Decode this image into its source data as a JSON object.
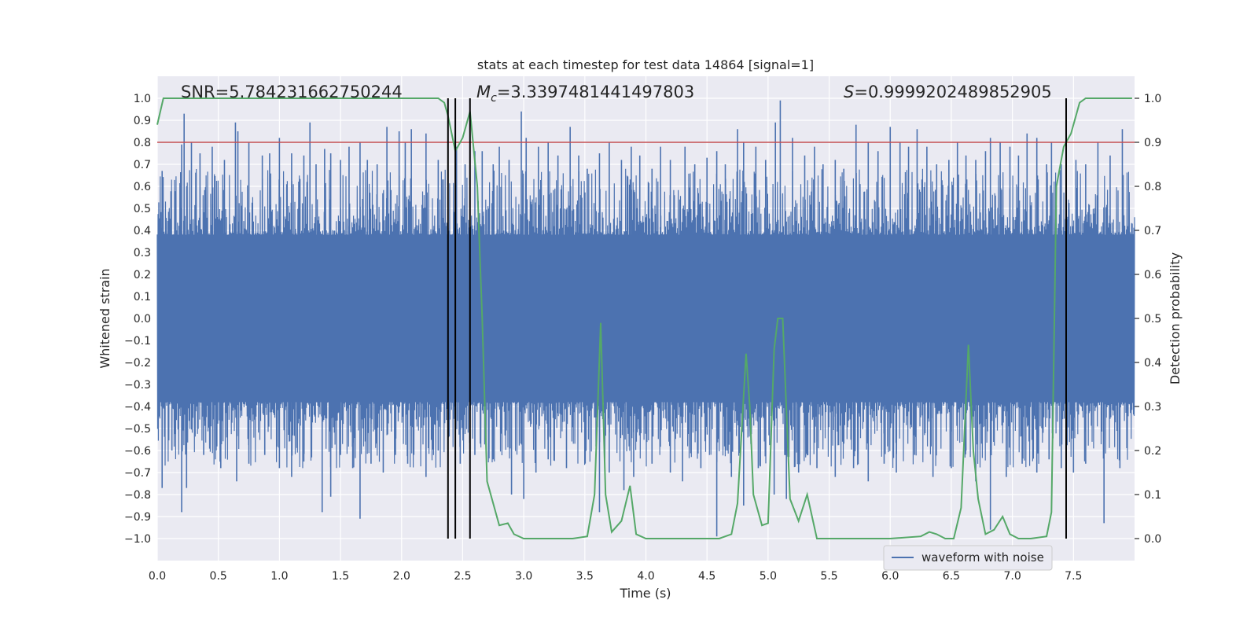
{
  "chart_data": {
    "type": "line",
    "title": "stats at each timestep for test data 14864 [signal=1]",
    "xlabel": "Time (s)",
    "ylabel": "Whitened strain",
    "y2label": "Detection probability",
    "xlim": [
      0.0,
      8.0
    ],
    "ylim": [
      -1.1,
      1.1
    ],
    "y2lim": [
      -0.05,
      1.05
    ],
    "xticks": [
      "0.0",
      "0.5",
      "1.0",
      "1.5",
      "2.0",
      "2.5",
      "3.0",
      "3.5",
      "4.0",
      "4.5",
      "5.0",
      "5.5",
      "6.0",
      "6.5",
      "7.0",
      "7.5"
    ],
    "yticks": [
      "1.0",
      "0.9",
      "0.8",
      "0.7",
      "0.6",
      "0.5",
      "0.4",
      "0.3",
      "0.2",
      "0.1",
      "0.0",
      "−0.1",
      "−0.2",
      "−0.3",
      "−0.4",
      "−0.5",
      "−0.6",
      "−0.7",
      "−0.8",
      "−0.9",
      "−1.0"
    ],
    "y2ticks": [
      "1.0",
      "0.9",
      "0.8",
      "0.7",
      "0.6",
      "0.5",
      "0.4",
      "0.3",
      "0.2",
      "0.1",
      "0.0"
    ],
    "grid": true,
    "legend_position": "bottom-right",
    "annotations": {
      "snr_text": "SNR=5.784231662750244",
      "mc_prefix": "M",
      "mc_sub": "c",
      "mc_value": "=3.3397481441497803",
      "s_prefix": "S",
      "s_value": "=0.9999202489852905"
    },
    "threshold_line": {
      "y": 0.8,
      "color": "#c44e52"
    },
    "vertical_lines_x": [
      2.38,
      2.44,
      2.56,
      7.44
    ],
    "series": [
      {
        "name": "waveform with noise",
        "color": "#4c72b0",
        "axis": "left",
        "envelope_note": "dense noise ~ ±0.4 with peaks to ±1.0",
        "peaks_x": [
          0.04,
          0.2,
          0.22,
          0.28,
          0.35,
          0.45,
          0.55,
          0.64,
          0.66,
          0.75,
          0.86,
          0.92,
          1.0,
          1.1,
          1.2,
          1.25,
          1.3,
          1.37,
          1.42,
          1.5,
          1.57,
          1.66,
          1.72,
          1.8,
          1.88,
          1.98,
          2.03,
          2.08,
          2.2,
          2.3,
          2.45,
          2.52,
          2.6,
          2.66,
          2.75,
          2.8,
          2.88,
          2.98,
          3.02,
          3.12,
          3.2,
          3.28,
          3.38,
          3.45,
          3.52,
          3.62,
          3.7,
          3.8,
          3.88,
          3.95,
          4.05,
          4.12,
          4.2,
          4.32,
          4.4,
          4.5,
          4.58,
          4.65,
          4.75,
          4.8,
          4.9,
          4.98,
          5.06,
          5.1,
          5.2,
          5.3,
          5.38,
          5.45,
          5.55,
          5.62,
          5.72,
          5.82,
          5.9,
          6.0,
          6.08,
          6.15,
          6.22,
          6.3,
          6.38,
          6.48,
          6.55,
          6.62,
          6.7,
          6.78,
          6.82,
          6.9,
          6.98,
          7.05,
          7.12,
          7.2,
          7.28,
          7.32,
          7.4,
          7.52,
          7.6,
          7.7,
          7.8,
          7.9
        ],
        "peaks_y": [
          0.67,
          0.79,
          0.93,
          0.8,
          0.75,
          0.78,
          0.72,
          0.89,
          0.85,
          0.8,
          0.74,
          0.75,
          0.82,
          0.75,
          0.74,
          0.89,
          0.7,
          0.77,
          0.75,
          0.72,
          0.78,
          0.8,
          0.72,
          0.7,
          0.87,
          0.85,
          0.8,
          0.86,
          0.84,
          0.72,
          0.78,
          0.7,
          0.76,
          0.76,
          0.7,
          0.78,
          0.72,
          0.94,
          0.82,
          0.78,
          0.8,
          0.74,
          0.87,
          0.74,
          0.68,
          0.75,
          0.8,
          0.72,
          0.78,
          0.74,
          0.68,
          0.78,
          0.72,
          0.78,
          0.7,
          0.73,
          0.76,
          0.7,
          0.86,
          0.8,
          0.78,
          0.72,
          0.89,
          0.99,
          0.82,
          0.74,
          0.78,
          0.7,
          0.72,
          0.68,
          0.88,
          0.8,
          0.76,
          0.87,
          0.8,
          0.78,
          0.86,
          0.78,
          0.7,
          0.72,
          0.8,
          0.74,
          0.72,
          0.76,
          0.82,
          0.8,
          0.78,
          0.74,
          0.84,
          0.82,
          0.7,
          0.8,
          0.7,
          0.72,
          0.7,
          0.8,
          0.74,
          0.86
        ],
        "troughs_x": [
          0.04,
          0.12,
          0.2,
          0.24,
          0.38,
          0.52,
          0.65,
          0.75,
          0.88,
          1.0,
          1.1,
          1.2,
          1.35,
          1.42,
          1.5,
          1.6,
          1.66,
          1.75,
          1.85,
          1.95,
          2.05,
          2.2,
          2.3,
          2.48,
          2.6,
          2.75,
          2.9,
          3.0,
          3.1,
          3.2,
          3.35,
          3.5,
          3.62,
          3.7,
          3.82,
          3.9,
          4.05,
          4.2,
          4.3,
          4.45,
          4.58,
          4.7,
          4.8,
          4.92,
          5.05,
          5.15,
          5.25,
          5.4,
          5.55,
          5.7,
          5.82,
          5.95,
          6.05,
          6.2,
          6.35,
          6.5,
          6.62,
          6.7,
          6.82,
          6.95,
          7.08,
          7.2,
          7.3,
          7.4,
          7.5,
          7.6,
          7.75,
          7.88
        ],
        "troughs_y": [
          -0.77,
          -0.6,
          -0.88,
          -0.77,
          -0.62,
          -0.68,
          -0.74,
          -0.66,
          -0.62,
          -0.68,
          -0.72,
          -0.65,
          -0.88,
          -0.81,
          -0.62,
          -0.68,
          -0.91,
          -0.66,
          -0.7,
          -0.62,
          -0.66,
          -0.72,
          -0.6,
          -0.66,
          -0.62,
          -0.64,
          -0.8,
          -0.82,
          -0.7,
          -0.64,
          -0.68,
          -0.6,
          -0.88,
          -0.7,
          -0.78,
          -0.72,
          -0.66,
          -0.7,
          -0.74,
          -0.68,
          -0.99,
          -0.72,
          -0.85,
          -0.68,
          -0.8,
          -0.82,
          -0.7,
          -0.68,
          -0.72,
          -0.68,
          -0.74,
          -0.66,
          -0.7,
          -0.62,
          -0.72,
          -0.68,
          -0.6,
          -0.74,
          -0.96,
          -0.72,
          -0.66,
          -0.7,
          -0.64,
          -0.68,
          -0.7,
          -0.66,
          -0.93,
          -0.68
        ]
      },
      {
        "name": "detection probability",
        "color": "#55a868",
        "axis": "right",
        "x": [
          0.0,
          0.05,
          0.1,
          0.3,
          0.6,
          1.0,
          1.5,
          2.0,
          2.3,
          2.35,
          2.38,
          2.44,
          2.5,
          2.56,
          2.62,
          2.66,
          2.7,
          2.8,
          2.87,
          2.92,
          3.0,
          3.2,
          3.4,
          3.52,
          3.58,
          3.63,
          3.67,
          3.72,
          3.8,
          3.87,
          3.92,
          4.0,
          4.2,
          4.4,
          4.6,
          4.7,
          4.75,
          4.82,
          4.85,
          4.88,
          4.95,
          5.0,
          5.05,
          5.08,
          5.12,
          5.18,
          5.25,
          5.32,
          5.4,
          5.45,
          5.6,
          5.8,
          6.0,
          6.25,
          6.32,
          6.38,
          6.45,
          6.52,
          6.58,
          6.64,
          6.68,
          6.72,
          6.78,
          6.85,
          6.92,
          6.98,
          7.05,
          7.15,
          7.28,
          7.32,
          7.36,
          7.42,
          7.48,
          7.55,
          7.6,
          7.7,
          7.9,
          7.98
        ],
        "y": [
          0.94,
          1.0,
          1.0,
          1.0,
          1.0,
          1.0,
          1.0,
          1.0,
          1.0,
          0.99,
          0.96,
          0.88,
          0.91,
          0.97,
          0.8,
          0.5,
          0.13,
          0.03,
          0.035,
          0.01,
          0.0,
          0.0,
          0.0,
          0.005,
          0.1,
          0.49,
          0.1,
          0.015,
          0.04,
          0.12,
          0.01,
          0.0,
          0.0,
          0.0,
          0.0,
          0.01,
          0.08,
          0.42,
          0.3,
          0.1,
          0.03,
          0.035,
          0.43,
          0.5,
          0.5,
          0.09,
          0.04,
          0.1,
          0.0,
          0.0,
          0.0,
          0.0,
          0.0,
          0.005,
          0.015,
          0.01,
          0.0,
          0.0,
          0.07,
          0.44,
          0.2,
          0.09,
          0.01,
          0.02,
          0.05,
          0.01,
          0.0,
          0.0,
          0.005,
          0.06,
          0.8,
          0.89,
          0.92,
          0.99,
          1.0,
          1.0,
          1.0,
          1.0
        ]
      }
    ]
  }
}
